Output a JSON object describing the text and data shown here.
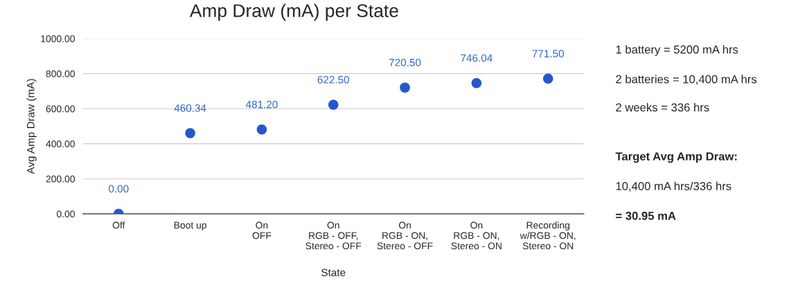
{
  "chart_data": {
    "type": "scatter",
    "title": "Amp Draw (mA) per State",
    "xlabel": "State",
    "ylabel": "Avg Amp Draw (mA)",
    "categories": [
      "Off",
      "Boot up",
      "On\nOFF",
      "On\nRGB - OFF,\nStereo - OFF",
      "On\nRGB - ON,\nStereo - OFF",
      "On\nRGB - ON,\nStereo - ON",
      "Recording\nw/RGB - ON,\nStereo - ON"
    ],
    "series": [
      {
        "color": "#2458cc",
        "values": [
          0.0,
          460.34,
          481.2,
          622.5,
          720.5,
          746.04,
          771.5
        ],
        "value_labels": [
          "0.00",
          "460.34",
          "481.20",
          "622.50",
          "720.50",
          "746.04",
          "771.50"
        ]
      }
    ],
    "ylim": [
      0,
      1000
    ],
    "yticks": [
      {
        "value": 0,
        "label": "0.00"
      },
      {
        "value": 200,
        "label": "200.00"
      },
      {
        "value": 400,
        "label": "400.00"
      },
      {
        "value": 600,
        "label": "600.00"
      },
      {
        "value": 800,
        "label": "800.00"
      },
      {
        "value": 1000,
        "label": "1000.00"
      }
    ],
    "grid": "y",
    "marker": "circle",
    "annotations": [
      "1 battery = 5200 mA hrs",
      "2 batteries = 10,400 mA hrs",
      "2 weeks = 336 hrs",
      "Target Avg Amp Draw:",
      "10,400 mA hrs/336 hrs",
      "= 30.95 mA"
    ]
  }
}
